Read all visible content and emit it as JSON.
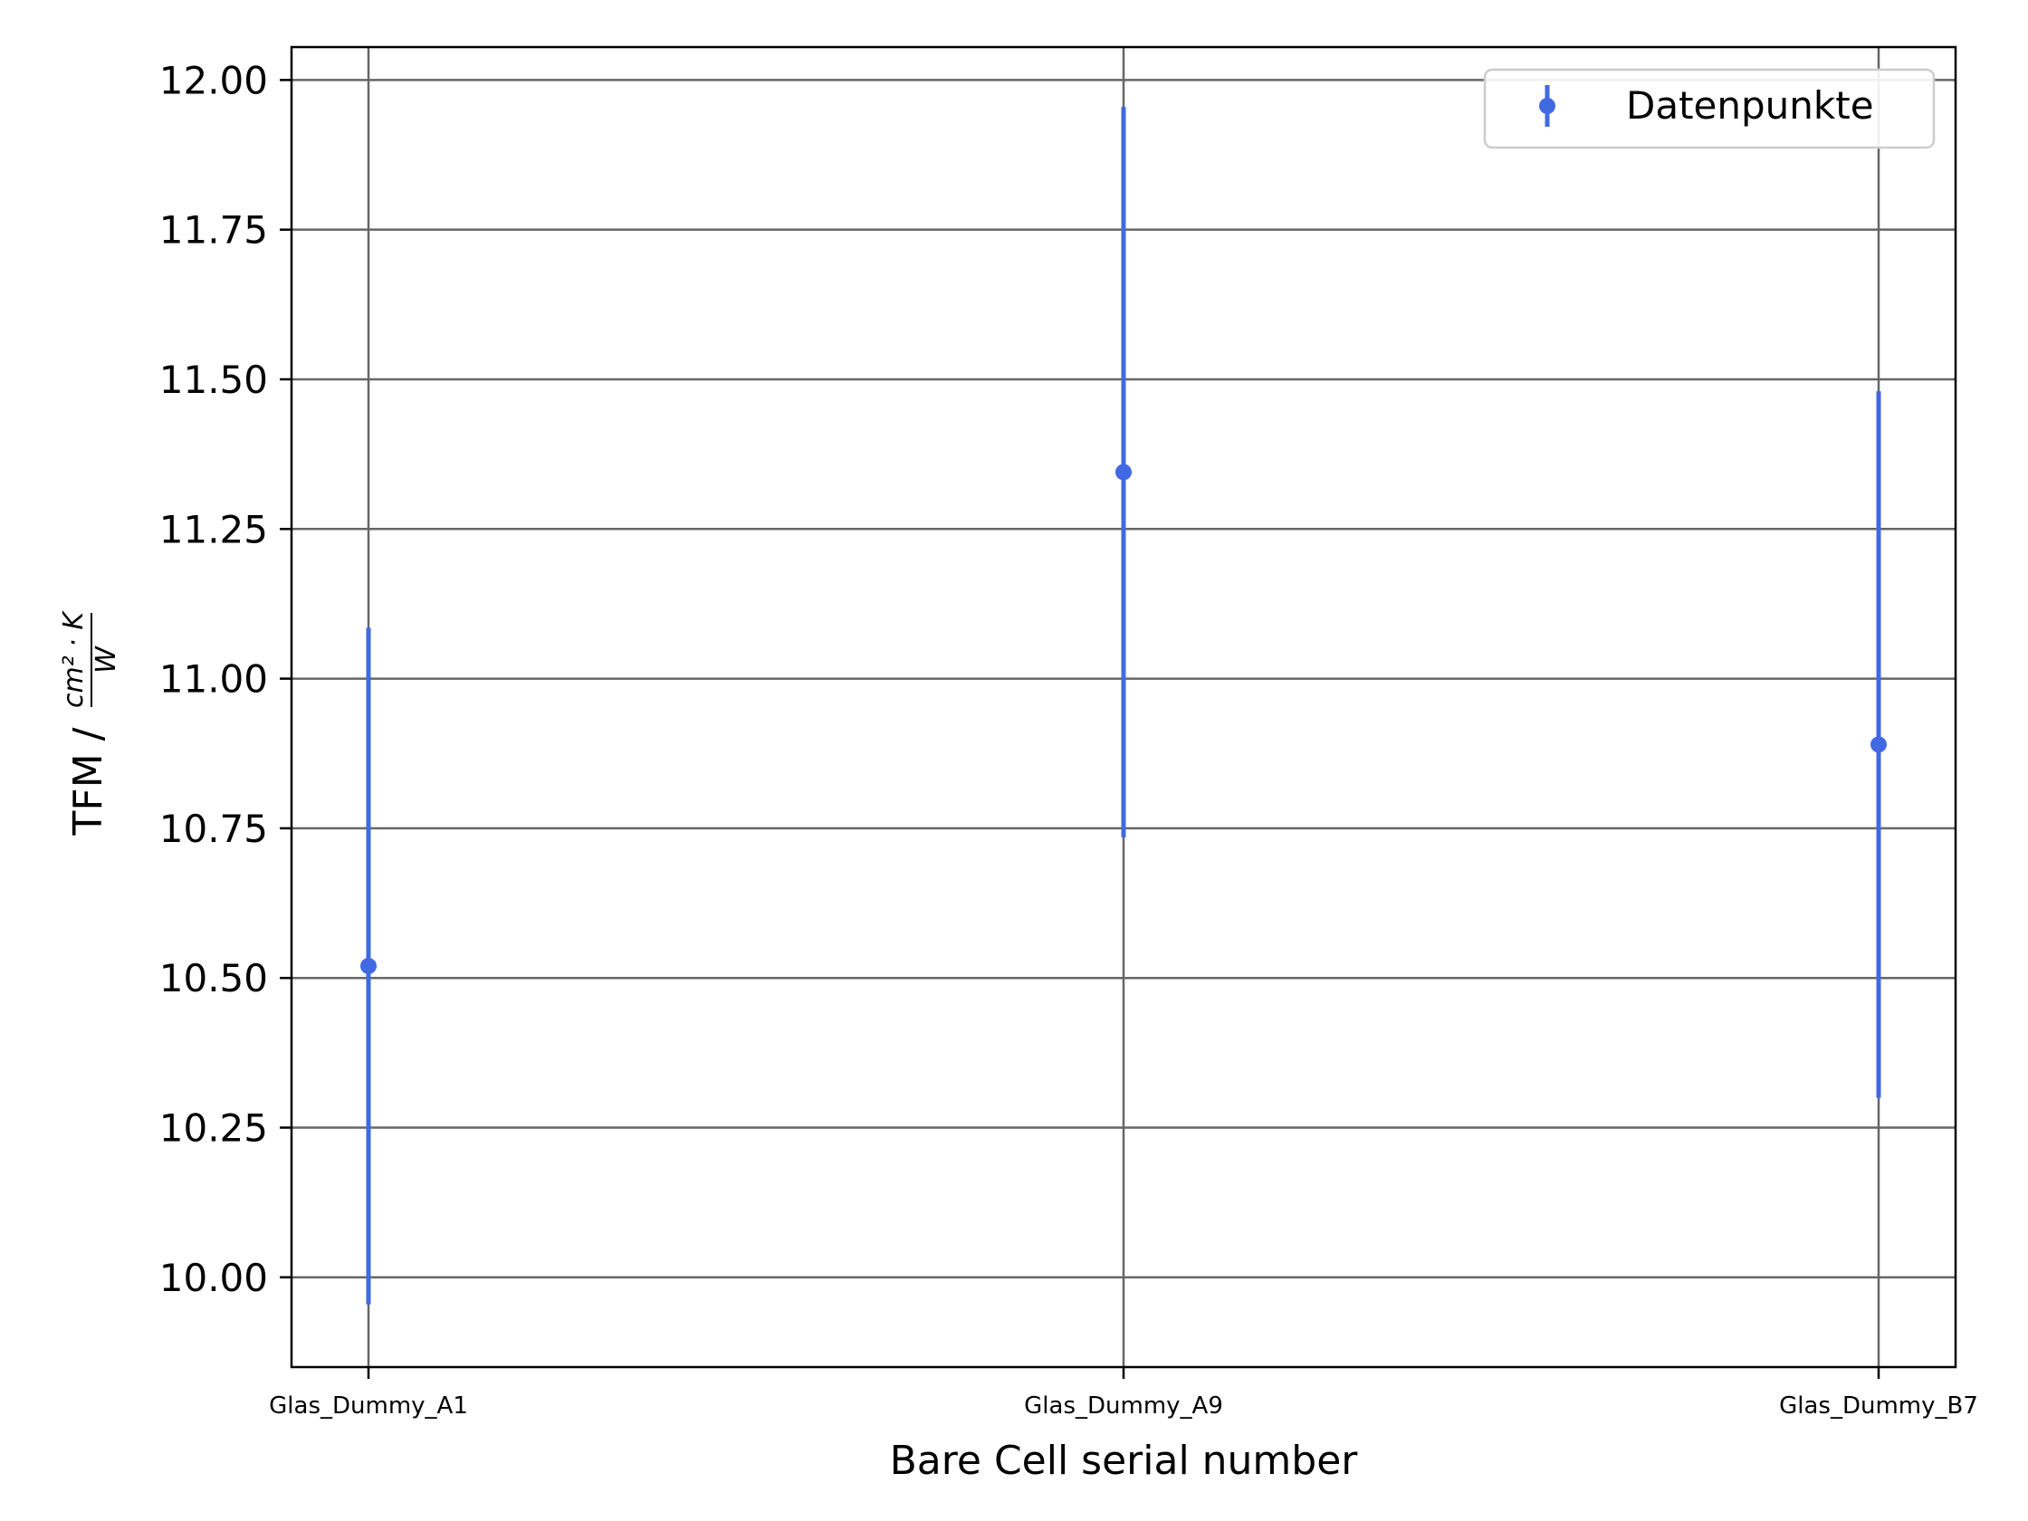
{
  "chart_data": {
    "type": "scatter",
    "error_bars": true,
    "categories": [
      "Glas_Dummy_A1",
      "Glas_Dummy_A9",
      "Glas_Dummy_B7"
    ],
    "series": [
      {
        "name": "Datenpunkte",
        "values": [
          10.52,
          11.345,
          10.89
        ],
        "errors": [
          0.565,
          0.61,
          0.59
        ],
        "color": "#4169e1"
      }
    ],
    "xlabel": "Bare Cell serial number",
    "ylabel": "TFM /",
    "ylabel_unit": {
      "numerator": "cm² · K",
      "denominator": "W"
    },
    "ylim": [
      9.85,
      12.055
    ],
    "yticks": [
      10.0,
      10.25,
      10.5,
      10.75,
      11.0,
      11.25,
      11.5,
      11.75,
      12.0
    ],
    "ytick_labels": [
      "10.00",
      "10.25",
      "10.50",
      "10.75",
      "11.00",
      "11.25",
      "11.50",
      "11.75",
      "12.00"
    ],
    "grid": true,
    "grid_color": "#666666",
    "legend_position": "top-right"
  }
}
